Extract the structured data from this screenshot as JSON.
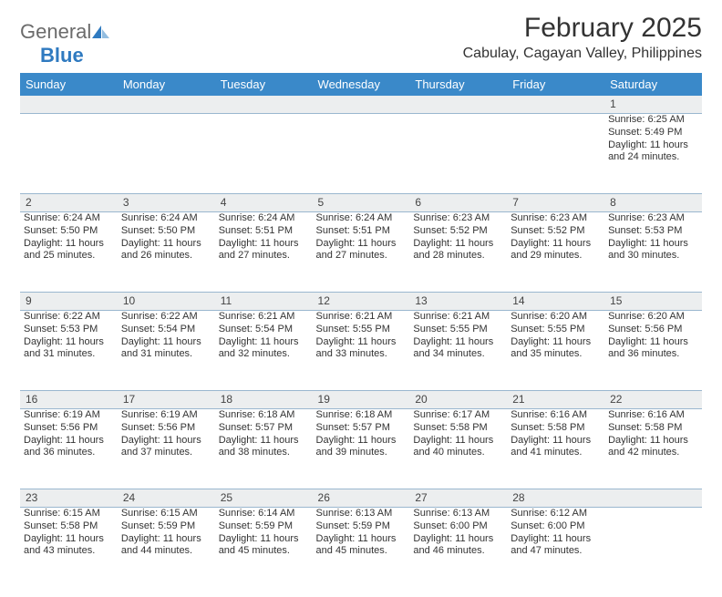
{
  "brand": {
    "word1": "General",
    "word2": "Blue"
  },
  "title": {
    "month": "February 2025",
    "location": "Cabulay, Cagayan Valley, Philippines"
  },
  "colors": {
    "header_bg": "#3a89c9",
    "rule": "#9ab7cf",
    "daybar": "#eceeef",
    "text": "#333333"
  },
  "dayNames": [
    "Sunday",
    "Monday",
    "Tuesday",
    "Wednesday",
    "Thursday",
    "Friday",
    "Saturday"
  ],
  "startOffset": 6,
  "days": [
    {
      "n": 1,
      "sunrise": "6:25 AM",
      "sunset": "5:49 PM",
      "daylight": "11 hours and 24 minutes."
    },
    {
      "n": 2,
      "sunrise": "6:24 AM",
      "sunset": "5:50 PM",
      "daylight": "11 hours and 25 minutes."
    },
    {
      "n": 3,
      "sunrise": "6:24 AM",
      "sunset": "5:50 PM",
      "daylight": "11 hours and 26 minutes."
    },
    {
      "n": 4,
      "sunrise": "6:24 AM",
      "sunset": "5:51 PM",
      "daylight": "11 hours and 27 minutes."
    },
    {
      "n": 5,
      "sunrise": "6:24 AM",
      "sunset": "5:51 PM",
      "daylight": "11 hours and 27 minutes."
    },
    {
      "n": 6,
      "sunrise": "6:23 AM",
      "sunset": "5:52 PM",
      "daylight": "11 hours and 28 minutes."
    },
    {
      "n": 7,
      "sunrise": "6:23 AM",
      "sunset": "5:52 PM",
      "daylight": "11 hours and 29 minutes."
    },
    {
      "n": 8,
      "sunrise": "6:23 AM",
      "sunset": "5:53 PM",
      "daylight": "11 hours and 30 minutes."
    },
    {
      "n": 9,
      "sunrise": "6:22 AM",
      "sunset": "5:53 PM",
      "daylight": "11 hours and 31 minutes."
    },
    {
      "n": 10,
      "sunrise": "6:22 AM",
      "sunset": "5:54 PM",
      "daylight": "11 hours and 31 minutes."
    },
    {
      "n": 11,
      "sunrise": "6:21 AM",
      "sunset": "5:54 PM",
      "daylight": "11 hours and 32 minutes."
    },
    {
      "n": 12,
      "sunrise": "6:21 AM",
      "sunset": "5:55 PM",
      "daylight": "11 hours and 33 minutes."
    },
    {
      "n": 13,
      "sunrise": "6:21 AM",
      "sunset": "5:55 PM",
      "daylight": "11 hours and 34 minutes."
    },
    {
      "n": 14,
      "sunrise": "6:20 AM",
      "sunset": "5:55 PM",
      "daylight": "11 hours and 35 minutes."
    },
    {
      "n": 15,
      "sunrise": "6:20 AM",
      "sunset": "5:56 PM",
      "daylight": "11 hours and 36 minutes."
    },
    {
      "n": 16,
      "sunrise": "6:19 AM",
      "sunset": "5:56 PM",
      "daylight": "11 hours and 36 minutes."
    },
    {
      "n": 17,
      "sunrise": "6:19 AM",
      "sunset": "5:56 PM",
      "daylight": "11 hours and 37 minutes."
    },
    {
      "n": 18,
      "sunrise": "6:18 AM",
      "sunset": "5:57 PM",
      "daylight": "11 hours and 38 minutes."
    },
    {
      "n": 19,
      "sunrise": "6:18 AM",
      "sunset": "5:57 PM",
      "daylight": "11 hours and 39 minutes."
    },
    {
      "n": 20,
      "sunrise": "6:17 AM",
      "sunset": "5:58 PM",
      "daylight": "11 hours and 40 minutes."
    },
    {
      "n": 21,
      "sunrise": "6:16 AM",
      "sunset": "5:58 PM",
      "daylight": "11 hours and 41 minutes."
    },
    {
      "n": 22,
      "sunrise": "6:16 AM",
      "sunset": "5:58 PM",
      "daylight": "11 hours and 42 minutes."
    },
    {
      "n": 23,
      "sunrise": "6:15 AM",
      "sunset": "5:58 PM",
      "daylight": "11 hours and 43 minutes."
    },
    {
      "n": 24,
      "sunrise": "6:15 AM",
      "sunset": "5:59 PM",
      "daylight": "11 hours and 44 minutes."
    },
    {
      "n": 25,
      "sunrise": "6:14 AM",
      "sunset": "5:59 PM",
      "daylight": "11 hours and 45 minutes."
    },
    {
      "n": 26,
      "sunrise": "6:13 AM",
      "sunset": "5:59 PM",
      "daylight": "11 hours and 45 minutes."
    },
    {
      "n": 27,
      "sunrise": "6:13 AM",
      "sunset": "6:00 PM",
      "daylight": "11 hours and 46 minutes."
    },
    {
      "n": 28,
      "sunrise": "6:12 AM",
      "sunset": "6:00 PM",
      "daylight": "11 hours and 47 minutes."
    }
  ],
  "labels": {
    "sunrise": "Sunrise:",
    "sunset": "Sunset:",
    "daylight": "Daylight:"
  }
}
